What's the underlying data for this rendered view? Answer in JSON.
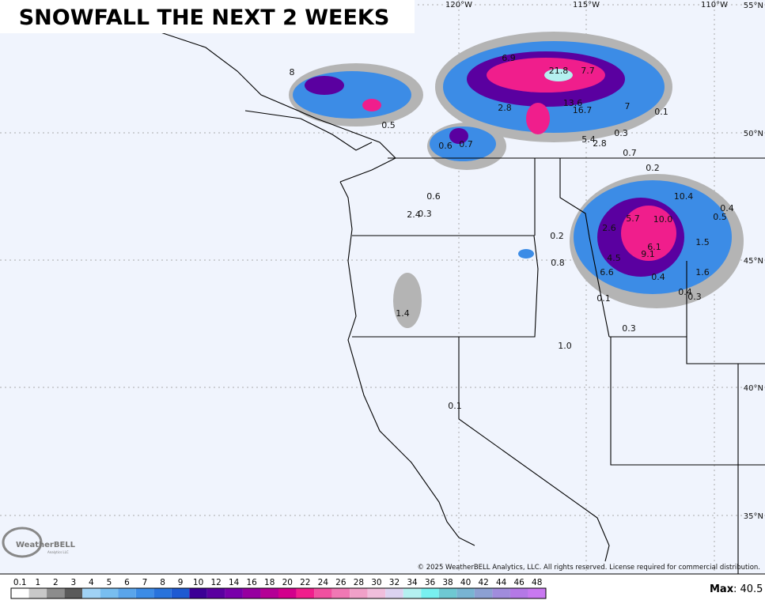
{
  "header": {
    "title": "SNOWFALL THE NEXT 2 WEEKS"
  },
  "map": {
    "longitude_labels": [
      "120°W",
      "115°W",
      "110°W"
    ],
    "latitude_labels": [
      "55°N",
      "50°N",
      "45°N",
      "40°N",
      "35°N"
    ],
    "amount_labels": [
      "6.9",
      "21.8",
      "7.7",
      "8",
      "2.8",
      "13.6",
      "16.7",
      "7",
      "0.1",
      "0.5",
      "0.3",
      "5.4",
      "2.8",
      "0.6",
      "0.7",
      "0.7",
      "0.2",
      "0.6",
      "2.4",
      "0.3",
      "10.4",
      "0.4",
      "5.7",
      "10.0",
      "0.5",
      "2.6",
      "0.2",
      "6.1",
      "9.1",
      "1.5",
      "4.5",
      "0.8",
      "6.6",
      "0.4",
      "1.6",
      "0.1",
      "0.4",
      "0.3",
      "0.3",
      "1.0",
      "1.4",
      "0.1"
    ],
    "copyright": "© 2025 WeatherBELL Analytics, LLC. All rights reserved. License required for commercial distribution.",
    "logo": {
      "name": "WeatherBELL",
      "subtitle": "Analytics LLC"
    }
  },
  "legend": {
    "labels": [
      "0.1",
      "1",
      "2",
      "3",
      "4",
      "5",
      "6",
      "7",
      "8",
      "9",
      "10",
      "12",
      "14",
      "16",
      "18",
      "20",
      "22",
      "24",
      "26",
      "28",
      "30",
      "32",
      "34",
      "36",
      "38",
      "40",
      "42",
      "44",
      "46",
      "48"
    ],
    "colors": [
      "#ffffff",
      "#c8c8c8",
      "#8c8c8c",
      "#5a5a5a",
      "#a0d2f5",
      "#78bef0",
      "#5aa5eb",
      "#3c8ce6",
      "#2873dc",
      "#1e5ad2",
      "#3c0096",
      "#5a00a0",
      "#7800aa",
      "#9600a0",
      "#b40096",
      "#d2008c",
      "#f01e8c",
      "#f050a0",
      "#f078b4",
      "#f0a0c8",
      "#f0bedc",
      "#dcd2f0",
      "#b4f0f0",
      "#78f0f0",
      "#6ec8d2",
      "#78b4d2",
      "#8ca0d2",
      "#a08cdc",
      "#b478e6",
      "#c878f0"
    ],
    "max_label": "Max",
    "max_value": ": 40.5"
  }
}
